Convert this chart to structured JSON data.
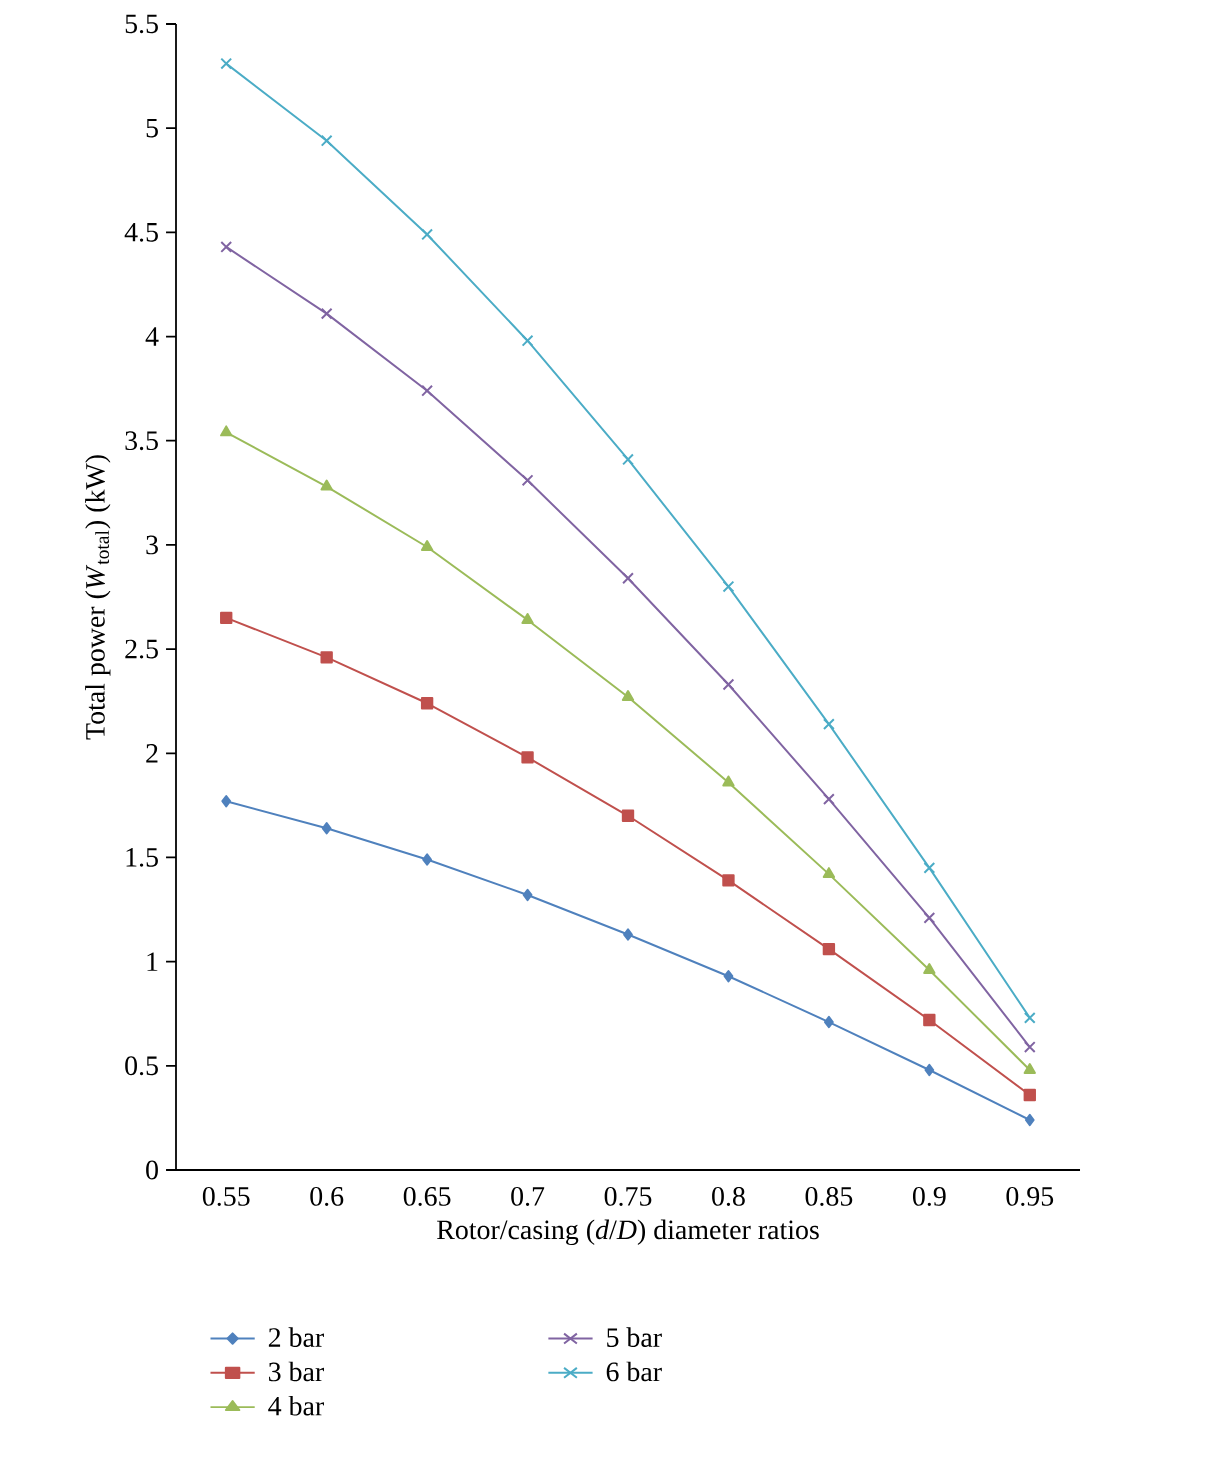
{
  "chart_data": {
    "type": "line",
    "xlabel": "Rotor/casing (*d*/*D*) diameter ratios",
    "ylabel": "Total power (*W*$_{total}$) (kW)",
    "categories": [
      "0.55",
      "0.6",
      "0.65",
      "0.7",
      "0.75",
      "0.8",
      "0.85",
      "0.9",
      "0.95"
    ],
    "ylim": [
      0,
      5.5
    ],
    "yticks": [
      0,
      0.5,
      1,
      1.5,
      2,
      2.5,
      3,
      3.5,
      4,
      4.5,
      5,
      5.5
    ],
    "grid": false,
    "legend": "bottom",
    "line_style": "solid",
    "series": [
      {
        "name": "2 bar",
        "color": "#4f81bd",
        "marker": "diamond",
        "values": [
          1.77,
          1.64,
          1.49,
          1.32,
          1.13,
          0.93,
          0.71,
          0.48,
          0.24
        ]
      },
      {
        "name": "3 bar",
        "color": "#c0504d",
        "marker": "square",
        "values": [
          2.65,
          2.46,
          2.24,
          1.98,
          1.7,
          1.39,
          1.06,
          0.72,
          0.36
        ]
      },
      {
        "name": "4 bar",
        "color": "#9bbb59",
        "marker": "triangle",
        "values": [
          3.54,
          3.28,
          2.99,
          2.64,
          2.27,
          1.86,
          1.42,
          0.96,
          0.48
        ]
      },
      {
        "name": "5 bar",
        "color": "#8064a2",
        "marker": "cross",
        "values": [
          4.43,
          4.11,
          3.74,
          3.31,
          2.84,
          2.33,
          1.78,
          1.21,
          0.59
        ]
      },
      {
        "name": "6 bar",
        "color": "#4bacc6",
        "marker": "cross",
        "values": [
          5.31,
          4.94,
          4.49,
          3.98,
          3.41,
          2.8,
          2.14,
          1.45,
          0.73
        ]
      }
    ]
  }
}
